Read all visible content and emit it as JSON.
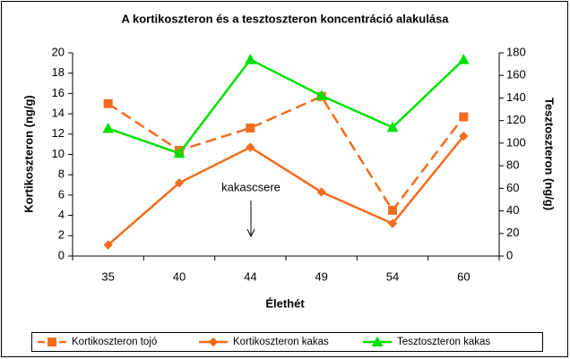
{
  "chart_data": {
    "type": "line",
    "title": "A kortikoszteron és a tesztoszteron koncentráció alakulása",
    "x_label": "Élethét",
    "y_label": "Kortikoszteron (ng/g)",
    "y2_label": "Tesztoszteron (ng/g)",
    "annotation": "kakascsere",
    "categories": [
      "35",
      "40",
      "44",
      "49",
      "54",
      "60"
    ],
    "ylim": [
      0,
      20
    ],
    "yticks": [
      0,
      2,
      4,
      6,
      8,
      10,
      12,
      14,
      16,
      18,
      20
    ],
    "y2lim": [
      0,
      180
    ],
    "y2ticks": [
      0,
      20,
      40,
      60,
      80,
      100,
      120,
      140,
      160,
      180
    ],
    "legend": "bottom",
    "series": [
      {
        "name": "Kortikoszteron tojó",
        "color": "#f26d1e",
        "dashed": true,
        "marker": "square",
        "values": [
          15,
          10.4,
          12.6,
          15.7,
          4.5,
          13.7
        ]
      },
      {
        "name": "Kortikoszteron kakas",
        "color": "#f26d1e",
        "dashed": false,
        "marker": "diamond",
        "values": [
          1.1,
          7.2,
          10.7,
          6.3,
          3.2,
          11.8
        ]
      },
      {
        "name": "Tesztoszteron kakas",
        "color": "#00e000",
        "dashed": false,
        "marker": "triangle",
        "axis": "y2",
        "values": [
          113,
          91,
          174,
          142,
          114,
          174
        ]
      }
    ]
  }
}
